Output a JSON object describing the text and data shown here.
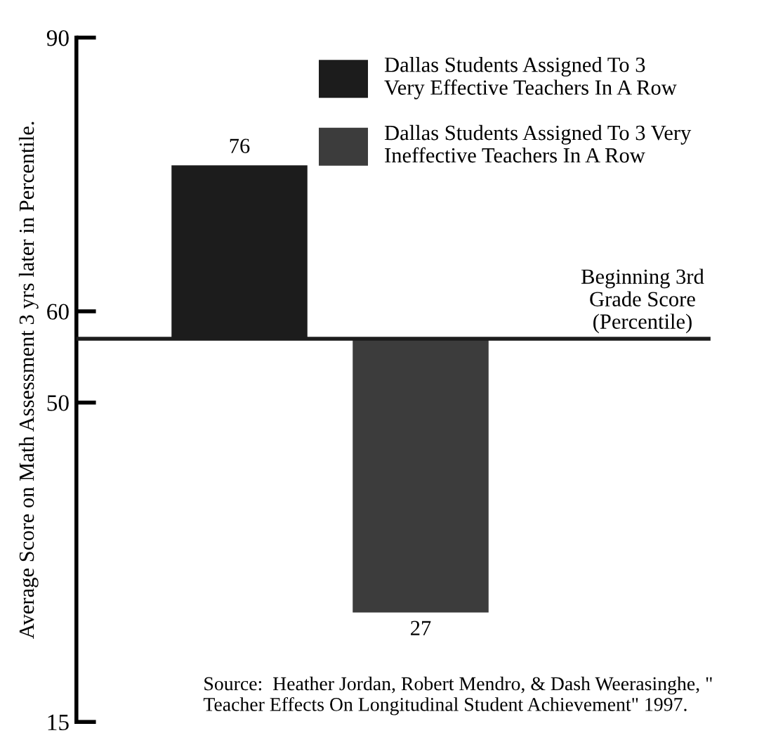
{
  "chart_data": {
    "type": "bar",
    "ylabel": "Average Score on Math Assessment 3 yrs later in Percentile.",
    "categories": [
      null,
      null
    ],
    "series": [
      {
        "name": "Dallas Students Assigned To 3\nVery Effective Teachers In A Row",
        "color": "#1c1c1c",
        "base": [
          57,
          null
        ],
        "values": [
          19,
          null
        ],
        "value_labels": [
          "76",
          null
        ]
      },
      {
        "name": "Dallas Students Assigned To 3 Very\nIneffective Teachers In A Row",
        "color": "#3c3c3c",
        "base": [
          null,
          57
        ],
        "values": [
          null,
          -30
        ],
        "value_labels": [
          null,
          "27"
        ]
      }
    ],
    "ylim": [
      15,
      90
    ],
    "yticks": [
      15,
      50,
      60,
      90
    ],
    "ref_lines": [
      {
        "axis": "y",
        "value": 57,
        "label": "Beginning 3rd\nGrade Score\n(Percentile)",
        "color": "#1c1c1c"
      }
    ],
    "annotations": [
      "Source:  Heather Jordan, Robert Mendro, & Dash Weerasinghe, \"\nTeacher Effects On Longitudinal Student Achievement\" 1997."
    ],
    "grid": false,
    "legend": "top right"
  }
}
